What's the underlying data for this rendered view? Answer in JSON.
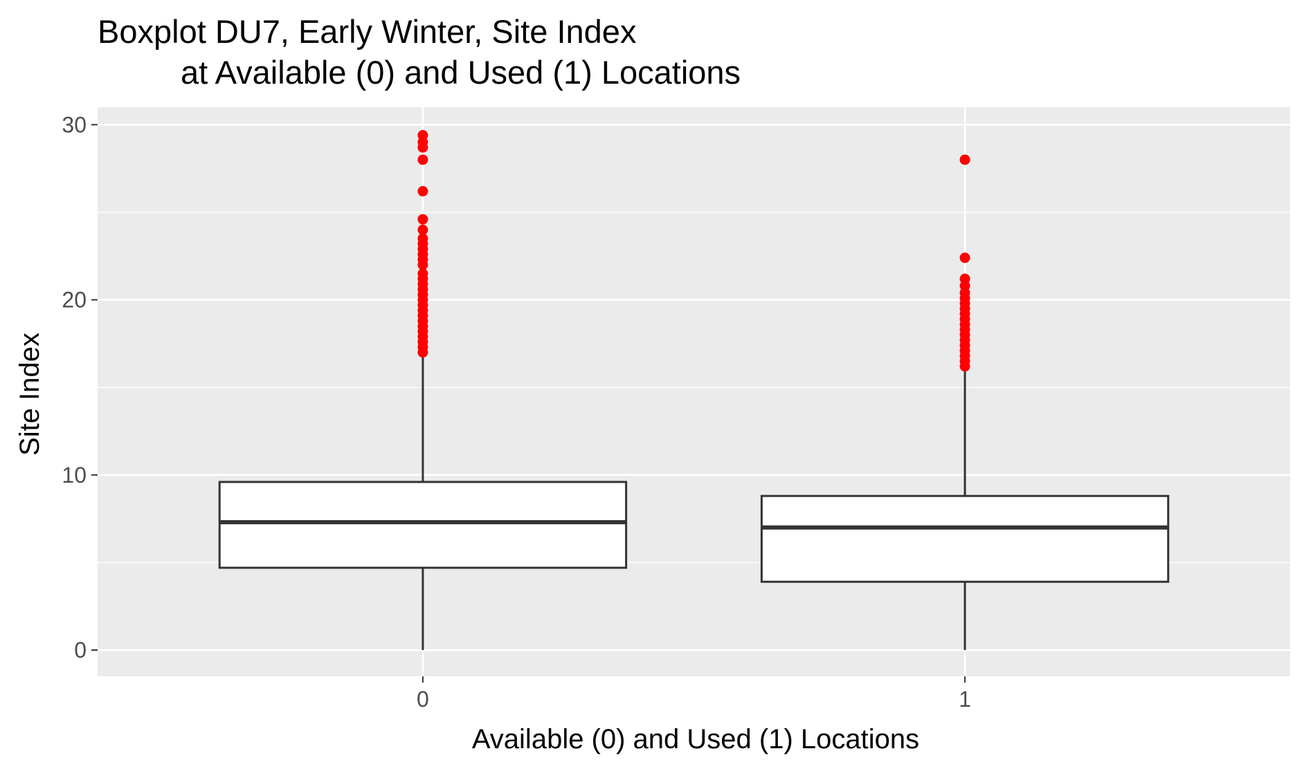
{
  "chart_data": {
    "type": "boxplot",
    "title": [
      "Boxplot DU7, Early Winter, Site Index",
      "at Available (0) and Used (1) Locations"
    ],
    "xlabel": "Available (0) and Used (1) Locations",
    "ylabel": "Site Index",
    "categories": [
      "0",
      "1"
    ],
    "ylim": [
      -1.5,
      31
    ],
    "yticks": [
      0,
      10,
      20,
      30
    ],
    "grid": true,
    "colors": {
      "panel_background": "#ebebeb",
      "grid": "#ffffff",
      "box_fill": "#ffffff",
      "box_stroke": "#333333",
      "outliers": "#ff0000"
    },
    "boxes": [
      {
        "category": "0",
        "lower_whisker": 0,
        "q1": 4.7,
        "median": 7.3,
        "q3": 9.6,
        "upper_whisker": 16.9,
        "outliers": [
          17.0,
          17.3,
          17.6,
          17.9,
          18.2,
          18.5,
          18.8,
          19.1,
          19.4,
          19.7,
          20.0,
          20.3,
          20.6,
          20.9,
          21.2,
          21.5,
          22.0,
          22.3,
          22.6,
          22.9,
          23.2,
          23.5,
          24.0,
          24.6,
          26.2,
          28.0,
          28.7,
          29.0,
          29.4
        ]
      },
      {
        "category": "1",
        "lower_whisker": 0,
        "q1": 3.9,
        "median": 7.0,
        "q3": 8.8,
        "upper_whisker": 16.1,
        "outliers": [
          16.2,
          16.5,
          16.8,
          17.1,
          17.4,
          17.7,
          18.0,
          18.3,
          18.6,
          18.9,
          19.2,
          19.5,
          19.8,
          20.1,
          20.4,
          20.8,
          21.2,
          22.4,
          28.0
        ]
      }
    ]
  }
}
